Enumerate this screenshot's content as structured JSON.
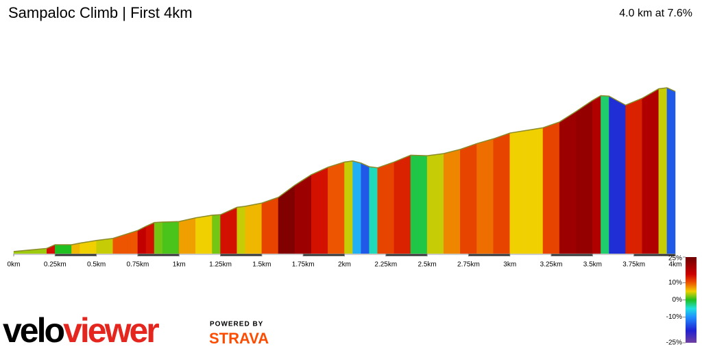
{
  "chart_data": {
    "type": "gradient-profile",
    "title": "Sampaloc Climb | First 4km",
    "subtitle": "4.0 km at 7.6%",
    "x": [
      0,
      0.1,
      0.2,
      0.25,
      0.3,
      0.35,
      0.4,
      0.5,
      0.6,
      0.7,
      0.75,
      0.8,
      0.85,
      0.9,
      1.0,
      1.1,
      1.2,
      1.25,
      1.3,
      1.35,
      1.4,
      1.5,
      1.6,
      1.7,
      1.75,
      1.8,
      1.9,
      2.0,
      2.05,
      2.1,
      2.15,
      2.2,
      2.3,
      2.4,
      2.5,
      2.6,
      2.7,
      2.8,
      2.9,
      3.0,
      3.1,
      3.2,
      3.3,
      3.4,
      3.5,
      3.55,
      3.6,
      3.7,
      3.8,
      3.9,
      3.95,
      4.0
    ],
    "elevation": [
      4,
      7,
      10,
      17,
      17,
      17,
      20,
      25,
      29,
      39,
      44,
      52,
      59,
      60,
      61,
      68,
      73,
      74,
      81,
      88,
      90,
      96,
      107,
      130,
      140,
      150,
      164,
      174,
      176,
      172,
      165,
      163,
      174,
      187,
      186,
      190,
      198,
      209,
      218,
      229,
      234,
      239,
      250,
      270,
      291,
      300,
      299,
      282,
      295,
      313,
      315,
      308
    ],
    "xlim": [
      0,
      4
    ],
    "xticks": [
      {
        "value": 0,
        "label": "0km"
      },
      {
        "value": 0.25,
        "label": "0.25km"
      },
      {
        "value": 0.5,
        "label": "0.5km"
      },
      {
        "value": 0.75,
        "label": "0.75km"
      },
      {
        "value": 1,
        "label": "1km"
      },
      {
        "value": 1.25,
        "label": "1.25km"
      },
      {
        "value": 1.5,
        "label": "1.5km"
      },
      {
        "value": 1.75,
        "label": "1.75km"
      },
      {
        "value": 2,
        "label": "2km"
      },
      {
        "value": 2.25,
        "label": "2.25km"
      },
      {
        "value": 2.5,
        "label": "2.5km"
      },
      {
        "value": 2.75,
        "label": "2.75km"
      },
      {
        "value": 3,
        "label": "3km"
      },
      {
        "value": 3.25,
        "label": "3.25km"
      },
      {
        "value": 3.5,
        "label": "3.5km"
      },
      {
        "value": 3.75,
        "label": "3.75km"
      },
      {
        "value": 4,
        "label": "4km"
      }
    ],
    "colorscale": {
      "stops": [
        25,
        15,
        10,
        5,
        0,
        -5,
        -10,
        -18,
        -25
      ],
      "colors": [
        "#6e0000",
        "#cc0000",
        "#ee5500",
        "#f0d000",
        "#20c020",
        "#20e0e0",
        "#2090ff",
        "#2020d0",
        "#7040a0"
      ],
      "ticks": [
        {
          "value": 25,
          "label": "25%"
        },
        {
          "value": 10,
          "label": "10%"
        },
        {
          "value": 0,
          "label": "0%"
        },
        {
          "value": -10,
          "label": "-10%"
        },
        {
          "value": -25,
          "label": "-25%"
        }
      ]
    }
  },
  "branding": {
    "logo_left": "velo",
    "logo_right": "viewer",
    "powered_by": "POWERED BY",
    "strava": "STRAVA"
  }
}
